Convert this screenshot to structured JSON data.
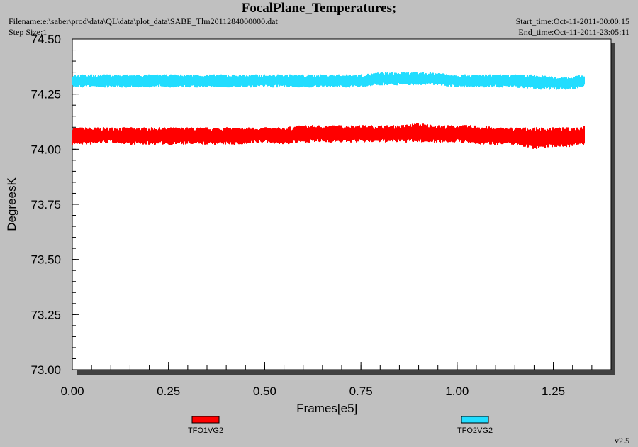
{
  "header": {
    "title": "FocalPlane_Temperatures;",
    "filename": "Filename:e:\\saber\\prod\\data\\QL\\data\\plot_data\\SABE_Tlm2011284000000.dat",
    "step_size": "Step Size:1",
    "start_time": "Start_time:Oct-11-2011-00:00:15",
    "end_time": "End_time:Oct-11-2011-23:05:11"
  },
  "footer": {
    "version": "v2.5"
  },
  "colors": {
    "background": "#c0c0c0",
    "plot_area": "#ffffff",
    "axis": "#000000"
  },
  "chart_data": {
    "type": "line",
    "title": "FocalPlane_Temperatures;",
    "xlabel": "Frames[e5]",
    "ylabel": "DegreesK",
    "xlim": [
      0,
      1.4
    ],
    "ylim": [
      73.0,
      74.5
    ],
    "x_ticks": [
      0,
      0.25,
      0.5,
      0.75,
      1.0,
      1.25
    ],
    "x_tick_labels": [
      "0.00",
      "0.25",
      "0.50",
      "0.75",
      "1.00",
      "1.25"
    ],
    "y_ticks": [
      73.0,
      73.25,
      73.5,
      73.75,
      74.0,
      74.25,
      74.5
    ],
    "y_tick_labels": [
      "73.00",
      "73.25",
      "73.50",
      "73.75",
      "74.00",
      "74.25",
      "74.50"
    ],
    "grid": false,
    "legend": "bottom",
    "series": [
      {
        "name": "TFO1VG2",
        "color": "#ff0000",
        "x": [
          0,
          0.05,
          0.1,
          0.15,
          0.2,
          0.25,
          0.3,
          0.35,
          0.4,
          0.45,
          0.5,
          0.55,
          0.6,
          0.65,
          0.7,
          0.75,
          0.8,
          0.85,
          0.9,
          0.95,
          1.0,
          1.05,
          1.1,
          1.15,
          1.2,
          1.25,
          1.3,
          1.33
        ],
        "y": [
          74.06,
          74.06,
          74.06,
          74.06,
          74.06,
          74.06,
          74.06,
          74.06,
          74.06,
          74.06,
          74.06,
          74.06,
          74.07,
          74.07,
          74.07,
          74.07,
          74.07,
          74.07,
          74.08,
          74.07,
          74.07,
          74.07,
          74.06,
          74.06,
          74.05,
          74.06,
          74.06,
          74.07
        ],
        "y_min": [
          74.02,
          74.02,
          74.03,
          74.02,
          74.02,
          74.02,
          74.02,
          74.02,
          74.02,
          74.02,
          74.03,
          74.02,
          74.03,
          74.03,
          74.03,
          74.03,
          74.03,
          74.03,
          74.03,
          74.03,
          74.03,
          74.02,
          74.02,
          74.02,
          74.0,
          74.01,
          74.01,
          74.02
        ],
        "y_max": [
          74.1,
          74.1,
          74.1,
          74.1,
          74.1,
          74.1,
          74.1,
          74.1,
          74.1,
          74.1,
          74.1,
          74.1,
          74.11,
          74.11,
          74.11,
          74.11,
          74.11,
          74.11,
          74.12,
          74.11,
          74.11,
          74.11,
          74.1,
          74.1,
          74.1,
          74.1,
          74.1,
          74.11
        ]
      },
      {
        "name": "TFO2VG2",
        "color": "#22ddff",
        "x": [
          0,
          0.05,
          0.1,
          0.15,
          0.2,
          0.25,
          0.3,
          0.35,
          0.4,
          0.45,
          0.5,
          0.55,
          0.6,
          0.65,
          0.7,
          0.75,
          0.8,
          0.85,
          0.9,
          0.95,
          1.0,
          1.05,
          1.1,
          1.15,
          1.2,
          1.25,
          1.3,
          1.33
        ],
        "y": [
          74.31,
          74.31,
          74.31,
          74.31,
          74.31,
          74.31,
          74.31,
          74.31,
          74.31,
          74.31,
          74.31,
          74.31,
          74.31,
          74.31,
          74.31,
          74.31,
          74.32,
          74.32,
          74.32,
          74.32,
          74.31,
          74.31,
          74.31,
          74.31,
          74.31,
          74.3,
          74.3,
          74.31
        ],
        "y_min": [
          74.28,
          74.28,
          74.28,
          74.28,
          74.28,
          74.28,
          74.28,
          74.28,
          74.28,
          74.28,
          74.28,
          74.28,
          74.28,
          74.28,
          74.28,
          74.28,
          74.29,
          74.29,
          74.29,
          74.29,
          74.28,
          74.28,
          74.28,
          74.28,
          74.27,
          74.27,
          74.27,
          74.28
        ],
        "y_max": [
          74.34,
          74.34,
          74.34,
          74.34,
          74.34,
          74.34,
          74.34,
          74.34,
          74.34,
          74.34,
          74.34,
          74.34,
          74.34,
          74.34,
          74.34,
          74.34,
          74.35,
          74.35,
          74.35,
          74.35,
          74.34,
          74.34,
          74.34,
          74.34,
          74.34,
          74.33,
          74.33,
          74.34
        ]
      }
    ]
  }
}
